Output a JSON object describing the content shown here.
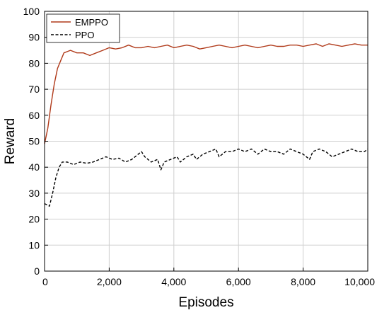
{
  "chart_data": {
    "type": "line",
    "xlabel": "Episodes",
    "ylabel": "Reward",
    "xlim": [
      0,
      10000
    ],
    "ylim": [
      0,
      100
    ],
    "x_ticks": [
      0,
      2000,
      4000,
      6000,
      8000,
      10000
    ],
    "x_tick_labels": [
      "0",
      "2,000",
      "4,000",
      "6,000",
      "8,000",
      "10,000"
    ],
    "y_ticks": [
      0,
      10,
      20,
      30,
      40,
      50,
      60,
      70,
      80,
      90,
      100
    ],
    "y_tick_labels": [
      "0",
      "10",
      "20",
      "30",
      "40",
      "50",
      "60",
      "70",
      "80",
      "90",
      "100"
    ],
    "grid": true,
    "legend_position": "top-left",
    "series": [
      {
        "name": "EMPPO",
        "color": "#b03a1a",
        "line_style": "solid",
        "points": [
          [
            0,
            49
          ],
          [
            100,
            55
          ],
          [
            200,
            64
          ],
          [
            300,
            72
          ],
          [
            400,
            78
          ],
          [
            500,
            81
          ],
          [
            600,
            84
          ],
          [
            700,
            84.5
          ],
          [
            800,
            85
          ],
          [
            1000,
            84
          ],
          [
            1200,
            84
          ],
          [
            1400,
            83
          ],
          [
            1600,
            84
          ],
          [
            1800,
            85
          ],
          [
            2000,
            86
          ],
          [
            2200,
            85.5
          ],
          [
            2400,
            86
          ],
          [
            2600,
            87
          ],
          [
            2800,
            86
          ],
          [
            3000,
            86
          ],
          [
            3200,
            86.5
          ],
          [
            3400,
            86
          ],
          [
            3600,
            86.5
          ],
          [
            3800,
            87
          ],
          [
            4000,
            86
          ],
          [
            4200,
            86.5
          ],
          [
            4400,
            87
          ],
          [
            4600,
            86.5
          ],
          [
            4800,
            85.5
          ],
          [
            5000,
            86
          ],
          [
            5200,
            86.5
          ],
          [
            5400,
            87
          ],
          [
            5600,
            86.5
          ],
          [
            5800,
            86
          ],
          [
            6000,
            86.5
          ],
          [
            6200,
            87
          ],
          [
            6400,
            86.5
          ],
          [
            6600,
            86
          ],
          [
            6800,
            86.5
          ],
          [
            7000,
            87
          ],
          [
            7200,
            86.5
          ],
          [
            7400,
            86.5
          ],
          [
            7600,
            87
          ],
          [
            7800,
            87
          ],
          [
            8000,
            86.5
          ],
          [
            8200,
            87
          ],
          [
            8400,
            87.5
          ],
          [
            8600,
            86.5
          ],
          [
            8800,
            87.5
          ],
          [
            9000,
            87
          ],
          [
            9200,
            86.5
          ],
          [
            9400,
            87
          ],
          [
            9600,
            87.5
          ],
          [
            9800,
            87
          ],
          [
            10000,
            87
          ]
        ]
      },
      {
        "name": "PPO",
        "color": "#000000",
        "line_style": "dashed",
        "points": [
          [
            0,
            26
          ],
          [
            150,
            25
          ],
          [
            250,
            30
          ],
          [
            350,
            36
          ],
          [
            450,
            40
          ],
          [
            550,
            42
          ],
          [
            700,
            42
          ],
          [
            900,
            41
          ],
          [
            1100,
            42
          ],
          [
            1300,
            41.5
          ],
          [
            1500,
            42
          ],
          [
            1700,
            43
          ],
          [
            1900,
            44
          ],
          [
            2100,
            43
          ],
          [
            2300,
            43.5
          ],
          [
            2500,
            42
          ],
          [
            2700,
            43
          ],
          [
            2900,
            45
          ],
          [
            3000,
            46
          ],
          [
            3100,
            44
          ],
          [
            3300,
            42
          ],
          [
            3500,
            43
          ],
          [
            3600,
            39
          ],
          [
            3700,
            42
          ],
          [
            3900,
            43
          ],
          [
            4100,
            44
          ],
          [
            4200,
            42
          ],
          [
            4400,
            44
          ],
          [
            4600,
            45
          ],
          [
            4700,
            43
          ],
          [
            4900,
            45
          ],
          [
            5100,
            46
          ],
          [
            5300,
            47
          ],
          [
            5400,
            44
          ],
          [
            5600,
            46
          ],
          [
            5800,
            46
          ],
          [
            6000,
            47
          ],
          [
            6200,
            46
          ],
          [
            6400,
            47
          ],
          [
            6600,
            45
          ],
          [
            6800,
            47
          ],
          [
            7000,
            46
          ],
          [
            7200,
            46
          ],
          [
            7400,
            45
          ],
          [
            7600,
            47
          ],
          [
            7800,
            46
          ],
          [
            8000,
            45
          ],
          [
            8200,
            43
          ],
          [
            8300,
            46
          ],
          [
            8500,
            47
          ],
          [
            8700,
            46
          ],
          [
            8900,
            44
          ],
          [
            9100,
            45
          ],
          [
            9300,
            46
          ],
          [
            9500,
            47
          ],
          [
            9700,
            46
          ],
          [
            9900,
            46
          ],
          [
            10000,
            47
          ]
        ]
      }
    ]
  }
}
